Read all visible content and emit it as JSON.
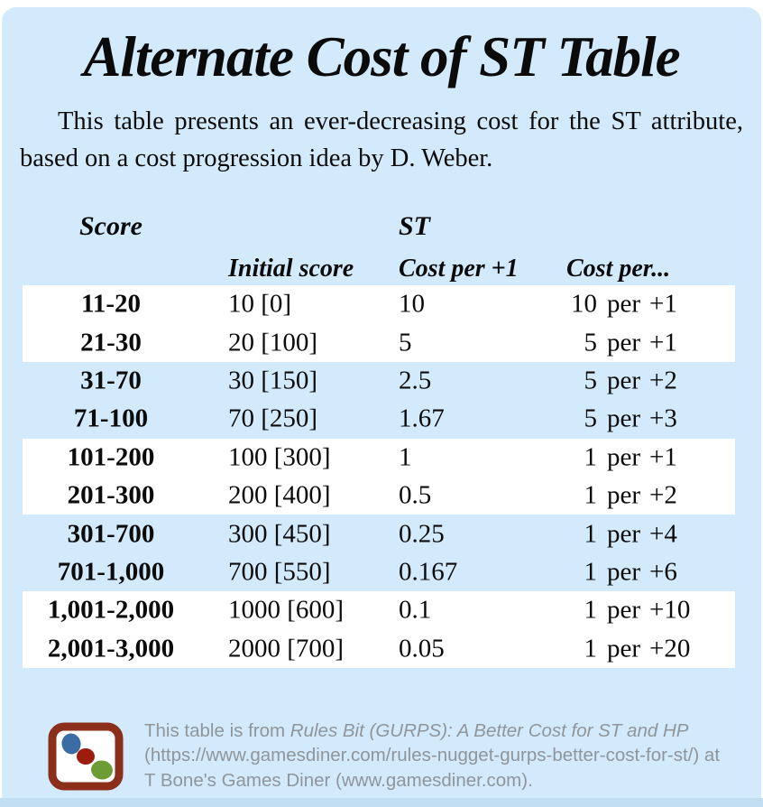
{
  "title": "Alternate Cost of ST Table",
  "intro": "This table presents an ever-decreasing cost for the ST attribute, based on a cost progression idea by D. Weber.",
  "table": {
    "headers": {
      "score": "Score",
      "st": "ST",
      "initial_score": "Initial score",
      "cost_per_plus1": "Cost per +1",
      "cost_per": "Cost per..."
    },
    "rows": [
      {
        "range": "11-20",
        "initial": "10 [0]",
        "cost_per_plus1": "10",
        "per_cost": "10",
        "per_word": "per",
        "per_step": "+1",
        "band": "white"
      },
      {
        "range": "21-30",
        "initial": "20 [100]",
        "cost_per_plus1": "5",
        "per_cost": "5",
        "per_word": "per",
        "per_step": "+1",
        "band": "white"
      },
      {
        "range": "31-70",
        "initial": "30 [150]",
        "cost_per_plus1": "2.5",
        "per_cost": "5",
        "per_word": "per",
        "per_step": "+2",
        "band": "blue"
      },
      {
        "range": "71-100",
        "initial": "70 [250]",
        "cost_per_plus1": "1.67",
        "per_cost": "5",
        "per_word": "per",
        "per_step": "+3",
        "band": "blue"
      },
      {
        "range": "101-200",
        "initial": "100 [300]",
        "cost_per_plus1": "1",
        "per_cost": "1",
        "per_word": "per",
        "per_step": "+1",
        "band": "white"
      },
      {
        "range": "201-300",
        "initial": "200 [400]",
        "cost_per_plus1": "0.5",
        "per_cost": "1",
        "per_word": "per",
        "per_step": "+2",
        "band": "white"
      },
      {
        "range": "301-700",
        "initial": "300 [450]",
        "cost_per_plus1": "0.25",
        "per_cost": "1",
        "per_word": "per",
        "per_step": "+4",
        "band": "blue"
      },
      {
        "range": "701-1,000",
        "initial": "700 [550]",
        "cost_per_plus1": "0.167",
        "per_cost": "1",
        "per_word": "per",
        "per_step": "+6",
        "band": "blue"
      },
      {
        "range": "1,001-2,000",
        "initial": "1000 [600]",
        "cost_per_plus1": "0.1",
        "per_cost": "1",
        "per_word": "per",
        "per_step": "+10",
        "band": "white"
      },
      {
        "range": "2,001-3,000",
        "initial": "2000 [700]",
        "cost_per_plus1": "0.05",
        "per_cost": "1",
        "per_word": "per",
        "per_step": "+20",
        "band": "white"
      }
    ]
  },
  "footer": {
    "line1_prefix": "This table is from ",
    "line1_italic": "Rules Bit (GURPS): A Better Cost for ST and HP",
    "line2": "(https://www.gamesdiner.com/rules-nugget-gurps-better-cost-for-st/) at",
    "line3": "T Bone's Games Diner (www.gamesdiner.com)."
  },
  "colors": {
    "panel_bg": "#d3eafc",
    "row_band_white": "#ffffff",
    "bottom_strip": "#c2def2",
    "text": "#0b0b0c",
    "credit_gray": "#8f959a",
    "logo_border": "#8b2e1a",
    "logo_blue": "#3c6ca4",
    "logo_red": "#9c1d0e",
    "logo_green": "#6d9c34"
  }
}
